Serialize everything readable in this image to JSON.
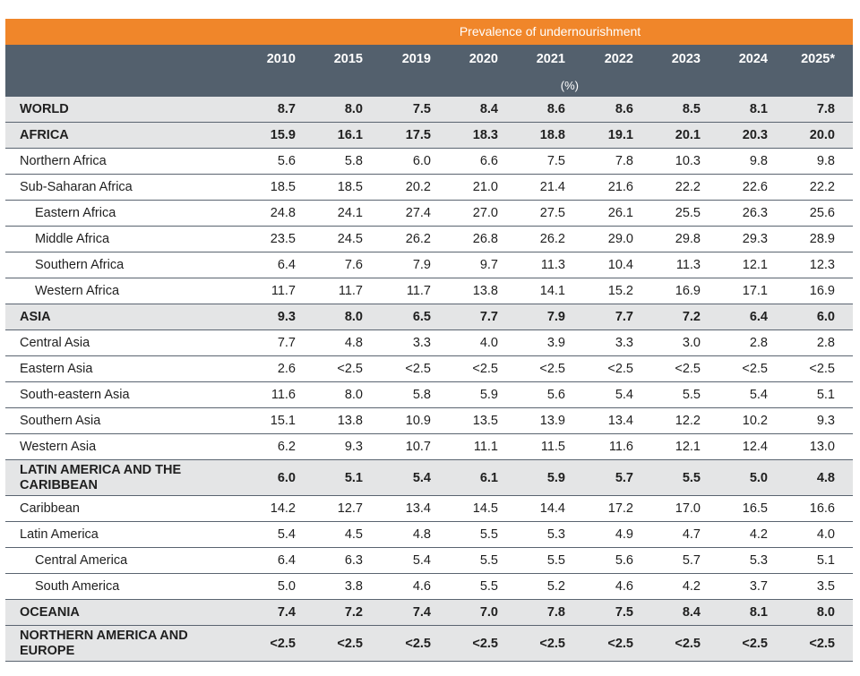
{
  "header": {
    "band_title": "Prevalence of undernourishment",
    "years": [
      "2010",
      "2015",
      "2019",
      "2020",
      "2021",
      "2022",
      "2023",
      "2024",
      "2025*"
    ],
    "unit": "(%)"
  },
  "colors": {
    "band": "#f0862a",
    "header": "#53606d",
    "grey_row": "#e4e5e6"
  },
  "chart_data": {
    "type": "table",
    "title": "Prevalence of undernourishment",
    "columns": [
      "2010",
      "2015",
      "2019",
      "2020",
      "2021",
      "2022",
      "2023",
      "2024",
      "2025*"
    ],
    "unit": "(%)",
    "rows": [
      {
        "label": "WORLD",
        "level": 0,
        "bold": true,
        "grey": true,
        "values": [
          "8.7",
          "8.0",
          "7.5",
          "8.4",
          "8.6",
          "8.6",
          "8.5",
          "8.1",
          "7.8"
        ]
      },
      {
        "label": "AFRICA",
        "level": 0,
        "bold": true,
        "grey": true,
        "values": [
          "15.9",
          "16.1",
          "17.5",
          "18.3",
          "18.8",
          "19.1",
          "20.1",
          "20.3",
          "20.0"
        ]
      },
      {
        "label": "Northern Africa",
        "level": 1,
        "bold": false,
        "grey": false,
        "values": [
          "5.6",
          "5.8",
          "6.0",
          "6.6",
          "7.5",
          "7.8",
          "10.3",
          "9.8",
          "9.8"
        ]
      },
      {
        "label": "Sub-Saharan Africa",
        "level": 1,
        "bold": false,
        "grey": false,
        "values": [
          "18.5",
          "18.5",
          "20.2",
          "21.0",
          "21.4",
          "21.6",
          "22.2",
          "22.6",
          "22.2"
        ]
      },
      {
        "label": "Eastern Africa",
        "level": 2,
        "bold": false,
        "grey": false,
        "values": [
          "24.8",
          "24.1",
          "27.4",
          "27.0",
          "27.5",
          "26.1",
          "25.5",
          "26.3",
          "25.6"
        ]
      },
      {
        "label": "Middle Africa",
        "level": 2,
        "bold": false,
        "grey": false,
        "values": [
          "23.5",
          "24.5",
          "26.2",
          "26.8",
          "26.2",
          "29.0",
          "29.8",
          "29.3",
          "28.9"
        ]
      },
      {
        "label": "Southern Africa",
        "level": 2,
        "bold": false,
        "grey": false,
        "values": [
          "6.4",
          "7.6",
          "7.9",
          "9.7",
          "11.3",
          "10.4",
          "11.3",
          "12.1",
          "12.3"
        ]
      },
      {
        "label": "Western Africa",
        "level": 2,
        "bold": false,
        "grey": false,
        "values": [
          "11.7",
          "11.7",
          "11.7",
          "13.8",
          "14.1",
          "15.2",
          "16.9",
          "17.1",
          "16.9"
        ]
      },
      {
        "label": "ASIA",
        "level": 0,
        "bold": true,
        "grey": true,
        "values": [
          "9.3",
          "8.0",
          "6.5",
          "7.7",
          "7.9",
          "7.7",
          "7.2",
          "6.4",
          "6.0"
        ]
      },
      {
        "label": "Central Asia",
        "level": 1,
        "bold": false,
        "grey": false,
        "values": [
          "7.7",
          "4.8",
          "3.3",
          "4.0",
          "3.9",
          "3.3",
          "3.0",
          "2.8",
          "2.8"
        ]
      },
      {
        "label": "Eastern Asia",
        "level": 1,
        "bold": false,
        "grey": false,
        "values": [
          "2.6",
          "<2.5",
          "<2.5",
          "<2.5",
          "<2.5",
          "<2.5",
          "<2.5",
          "<2.5",
          "<2.5"
        ]
      },
      {
        "label": "South-eastern Asia",
        "level": 1,
        "bold": false,
        "grey": false,
        "values": [
          "11.6",
          "8.0",
          "5.8",
          "5.9",
          "5.6",
          "5.4",
          "5.5",
          "5.4",
          "5.1"
        ]
      },
      {
        "label": "Southern Asia",
        "level": 1,
        "bold": false,
        "grey": false,
        "values": [
          "15.1",
          "13.8",
          "10.9",
          "13.5",
          "13.9",
          "13.4",
          "12.2",
          "10.2",
          "9.3"
        ]
      },
      {
        "label": "Western Asia",
        "level": 1,
        "bold": false,
        "grey": false,
        "values": [
          "6.2",
          "9.3",
          "10.7",
          "11.1",
          "11.5",
          "11.6",
          "12.1",
          "12.4",
          "13.0"
        ]
      },
      {
        "label": "LATIN AMERICA AND THE CARIBBEAN",
        "level": 0,
        "bold": true,
        "grey": true,
        "tall": true,
        "values": [
          "6.0",
          "5.1",
          "5.4",
          "6.1",
          "5.9",
          "5.7",
          "5.5",
          "5.0",
          "4.8"
        ]
      },
      {
        "label": "Caribbean",
        "level": 1,
        "bold": false,
        "grey": false,
        "values": [
          "14.2",
          "12.7",
          "13.4",
          "14.5",
          "14.4",
          "17.2",
          "17.0",
          "16.5",
          "16.6"
        ]
      },
      {
        "label": "Latin America",
        "level": 1,
        "bold": false,
        "grey": false,
        "values": [
          "5.4",
          "4.5",
          "4.8",
          "5.5",
          "5.3",
          "4.9",
          "4.7",
          "4.2",
          "4.0"
        ]
      },
      {
        "label": "Central America",
        "level": 2,
        "bold": false,
        "grey": false,
        "values": [
          "6.4",
          "6.3",
          "5.4",
          "5.5",
          "5.5",
          "5.6",
          "5.7",
          "5.3",
          "5.1"
        ]
      },
      {
        "label": "South America",
        "level": 2,
        "bold": false,
        "grey": false,
        "values": [
          "5.0",
          "3.8",
          "4.6",
          "5.5",
          "5.2",
          "4.6",
          "4.2",
          "3.7",
          "3.5"
        ]
      },
      {
        "label": "OCEANIA",
        "level": 0,
        "bold": true,
        "grey": true,
        "values": [
          "7.4",
          "7.2",
          "7.4",
          "7.0",
          "7.8",
          "7.5",
          "8.4",
          "8.1",
          "8.0"
        ]
      },
      {
        "label": "NORTHERN AMERICA AND EUROPE",
        "level": 0,
        "bold": true,
        "grey": true,
        "tall": true,
        "values": [
          "<2.5",
          "<2.5",
          "<2.5",
          "<2.5",
          "<2.5",
          "<2.5",
          "<2.5",
          "<2.5",
          "<2.5"
        ]
      }
    ]
  }
}
